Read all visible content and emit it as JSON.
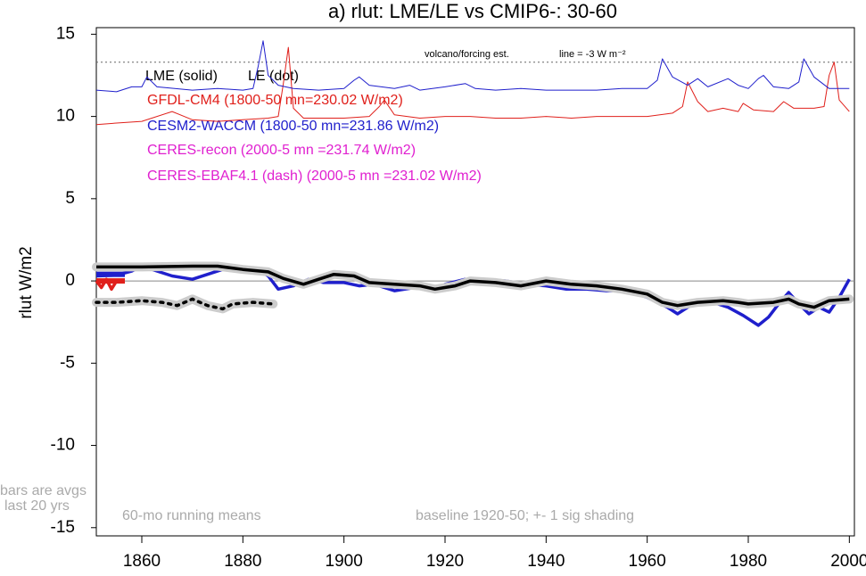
{
  "chart_data": {
    "type": "line",
    "title": "a) rlut: LME/LE vs CMIP6-: 30-60",
    "y_label": "rlut W/m2",
    "xlim": [
      1851,
      2001
    ],
    "xticks": [
      1860,
      1880,
      1900,
      1920,
      1940,
      1960,
      1980,
      2000
    ],
    "ylim": [
      -15.5,
      15.4
    ],
    "yticks": [
      15,
      10,
      5,
      0,
      -5,
      -10,
      -15
    ],
    "hline": 0,
    "volcano_line": {
      "value": 13.3,
      "label": "volcano/forcing est.",
      "note": "line = -3 W m⁻²"
    },
    "legend": [
      {
        "text": "LME (solid)",
        "color": "#000000"
      },
      {
        "text": "LE (dot)",
        "color": "#000000"
      },
      {
        "text": "GFDL-CM4 (1800-50 mn=230.02 W/m2)",
        "color": "#e0201b"
      },
      {
        "text": "CESM2-WACCM (1800-50 mn=231.86 W/m2)",
        "color": "#1f1fcc"
      },
      {
        "text": "CERES-recon (2000-5 mn =231.74 W/m2)",
        "color": "#e020d0"
      },
      {
        "text": "CERES-EBAF4.1 (dash) (2000-5 mn =231.02 W/m2)",
        "color": "#e020d0"
      }
    ],
    "notes": [
      "60-mo running means",
      "baseline 1920-50; +- 1 sig shading",
      "bars are avgs",
      "last 20 yrs"
    ],
    "bars": [
      {
        "color": "#000000",
        "value": 0.8
      },
      {
        "color": "#1f1fcc",
        "value": 0.4
      },
      {
        "color": "#e0201b",
        "value": 0.0
      }
    ],
    "series": [
      {
        "color": "#e0201b",
        "style": "thin",
        "x": [
          1851,
          1855,
          1860,
          1866,
          1870,
          1875,
          1880,
          1885,
          1887,
          1888,
          1889,
          1890,
          1892,
          1900,
          1905,
          1907,
          1908,
          1910,
          1915,
          1920,
          1925,
          1930,
          1935,
          1940,
          1945,
          1950,
          1955,
          1960,
          1965,
          1967,
          1968,
          1970,
          1972,
          1975,
          1978,
          1979,
          1981,
          1985,
          1987,
          1989,
          1993,
          1995,
          1996,
          1997,
          1998,
          2000
        ],
        "values": [
          9.5,
          9.6,
          9.7,
          10.3,
          9.8,
          9.7,
          9.8,
          9.9,
          10.0,
          12.0,
          14.2,
          10.5,
          9.9,
          9.9,
          10.0,
          10.6,
          11.0,
          10.1,
          9.9,
          10.0,
          10.0,
          9.9,
          9.9,
          10.0,
          9.9,
          10.0,
          10.0,
          10.0,
          10.2,
          10.6,
          12.1,
          10.9,
          10.3,
          10.5,
          10.3,
          10.8,
          10.4,
          10.3,
          10.9,
          10.5,
          10.5,
          10.6,
          12.5,
          13.3,
          11.0,
          10.3
        ]
      },
      {
        "color": "#1f1fcc",
        "style": "thin",
        "x": [
          1851,
          1855,
          1858,
          1860,
          1861,
          1863,
          1870,
          1875,
          1880,
          1882,
          1883,
          1884,
          1885,
          1887,
          1890,
          1895,
          1900,
          1902,
          1903,
          1905,
          1910,
          1913,
          1915,
          1920,
          1924,
          1926,
          1930,
          1935,
          1940,
          1945,
          1950,
          1955,
          1960,
          1962,
          1963,
          1965,
          1968,
          1970,
          1972,
          1976,
          1978,
          1980,
          1982,
          1983,
          1985,
          1988,
          1990,
          1991,
          1993,
          1996,
          2000
        ],
        "values": [
          11.6,
          11.5,
          11.8,
          11.8,
          12.4,
          11.8,
          11.6,
          11.7,
          11.6,
          11.7,
          13.0,
          14.6,
          12.5,
          11.9,
          11.7,
          11.6,
          11.7,
          12.2,
          12.4,
          11.9,
          11.7,
          11.9,
          11.6,
          11.8,
          12.0,
          11.7,
          11.6,
          11.7,
          11.6,
          11.6,
          11.6,
          11.7,
          11.7,
          12.2,
          13.5,
          12.4,
          11.9,
          12.3,
          11.8,
          12.3,
          11.9,
          11.7,
          12.3,
          12.5,
          11.8,
          11.7,
          12.1,
          13.5,
          12.4,
          11.7,
          11.7
        ]
      },
      {
        "color": "#000000",
        "style": "dotted",
        "shade": true,
        "x": [
          1851,
          1855,
          1860,
          1864,
          1867,
          1870,
          1873,
          1876,
          1878,
          1882,
          1886
        ],
        "values": [
          -1.3,
          -1.3,
          -1.2,
          -1.3,
          -1.5,
          -1.1,
          -1.5,
          -1.7,
          -1.4,
          -1.3,
          -1.4
        ]
      },
      {
        "color": "#e0201b",
        "style": "thick",
        "x": [
          1851,
          1852,
          1853,
          1854,
          1855
        ],
        "values": [
          0.0,
          -0.4,
          0.1,
          -0.5,
          0.0
        ]
      },
      {
        "color": "#1f1fcc",
        "style": "thick",
        "x": [
          1851,
          1855,
          1858,
          1860,
          1863,
          1866,
          1870,
          1873,
          1877,
          1880,
          1883,
          1885,
          1887,
          1890,
          1893,
          1896,
          1900,
          1903,
          1906,
          1910,
          1914,
          1918,
          1920,
          1924,
          1928,
          1932,
          1936,
          1940,
          1944,
          1948,
          1952,
          1956,
          1960,
          1964,
          1966,
          1968,
          1970,
          1973,
          1976,
          1979,
          1982,
          1984,
          1986,
          1988,
          1990,
          1992,
          1994,
          1996,
          1998,
          2000
        ],
        "values": [
          0.3,
          0.35,
          0.6,
          0.9,
          0.6,
          0.3,
          0.1,
          0.4,
          0.8,
          0.6,
          0.7,
          0.3,
          -0.5,
          -0.3,
          0.1,
          -0.1,
          -0.1,
          -0.3,
          -0.2,
          -0.6,
          -0.4,
          -0.6,
          -0.2,
          0.1,
          0.1,
          0.0,
          -0.2,
          -0.3,
          -0.5,
          -0.5,
          -0.6,
          -0.6,
          -1.0,
          -1.6,
          -2.0,
          -1.6,
          -1.3,
          -1.3,
          -1.6,
          -2.1,
          -2.7,
          -2.2,
          -1.4,
          -0.7,
          -1.4,
          -2.0,
          -1.6,
          -1.9,
          -1.0,
          0.1
        ]
      },
      {
        "color": "#000000",
        "style": "thick",
        "shade": true,
        "x": [
          1851,
          1860,
          1870,
          1875,
          1880,
          1885,
          1888,
          1892,
          1895,
          1898,
          1902,
          1905,
          1910,
          1915,
          1918,
          1922,
          1925,
          1930,
          1935,
          1940,
          1945,
          1950,
          1955,
          1960,
          1963,
          1966,
          1970,
          1975,
          1978,
          1980,
          1985,
          1988,
          1990,
          1993,
          1996,
          2000
        ],
        "values": [
          0.85,
          0.85,
          0.9,
          0.9,
          0.7,
          0.55,
          0.15,
          -0.2,
          0.1,
          0.4,
          0.3,
          -0.1,
          -0.2,
          -0.3,
          -0.5,
          -0.3,
          0.0,
          -0.1,
          -0.3,
          0.0,
          -0.2,
          -0.3,
          -0.5,
          -0.8,
          -1.3,
          -1.5,
          -1.3,
          -1.2,
          -1.3,
          -1.4,
          -1.3,
          -1.1,
          -1.4,
          -1.6,
          -1.2,
          -1.1
        ]
      }
    ]
  }
}
